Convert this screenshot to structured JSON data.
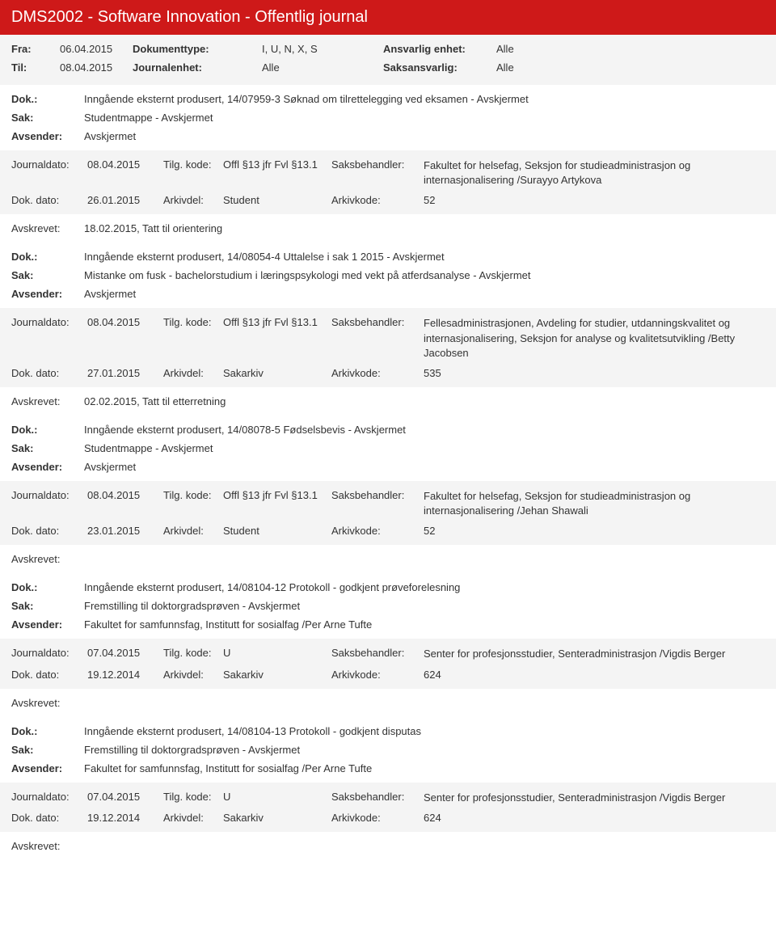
{
  "header": {
    "title": "DMS2002 - Software Innovation - Offentlig journal",
    "fra_label": "Fra:",
    "fra_value": "06.04.2015",
    "til_label": "Til:",
    "til_value": "08.04.2015",
    "doktype_label": "Dokumenttype:",
    "doktype_value": "I, U, N, X, S",
    "journalenhet_label": "Journalenhet:",
    "journalenhet_value": "Alle",
    "ansvarlig_label": "Ansvarlig enhet:",
    "ansvarlig_value": "Alle",
    "saksansvarlig_label": "Saksansvarlig:",
    "saksansvarlig_value": "Alle"
  },
  "labels": {
    "dok": "Dok.:",
    "sak": "Sak:",
    "avsender": "Avsender:",
    "journaldato": "Journaldato:",
    "tilg_kode": "Tilg. kode:",
    "saksbehandler": "Saksbehandler:",
    "dok_dato": "Dok. dato:",
    "arkivdel": "Arkivdel:",
    "arkivkode": "Arkivkode:",
    "avskrevet": "Avskrevet:"
  },
  "entries": [
    {
      "dok": "Inngående eksternt produsert, 14/07959-3 Søknad om tilrettelegging ved eksamen - Avskjermet",
      "sak": "Studentmappe - Avskjermet",
      "avsender": "Avskjermet",
      "journaldato": "08.04.2015",
      "tilg_kode": "Offl §13 jfr Fvl §13.1",
      "saksbehandler": "Fakultet for helsefag, Seksjon for studieadministrasjon og internasjonalisering /Surayyo Artykova",
      "dok_dato": "26.01.2015",
      "arkivdel": "Student",
      "arkivkode": "52",
      "avskrevet": "18.02.2015, Tatt til orientering"
    },
    {
      "dok": "Inngående eksternt produsert, 14/08054-4 Uttalelse i sak 1 2015 - Avskjermet",
      "sak": "Mistanke om fusk - bachelorstudium i læringspsykologi med vekt på atferdsanalyse - Avskjermet",
      "avsender": "Avskjermet",
      "journaldato": "08.04.2015",
      "tilg_kode": "Offl §13 jfr Fvl §13.1",
      "saksbehandler": "Fellesadministrasjonen, Avdeling for studier, utdanningskvalitet og internasjonalisering, Seksjon for analyse og kvalitetsutvikling /Betty Jacobsen",
      "dok_dato": "27.01.2015",
      "arkivdel": "Sakarkiv",
      "arkivkode": "535",
      "avskrevet": "02.02.2015, Tatt til etterretning"
    },
    {
      "dok": "Inngående eksternt produsert, 14/08078-5 Fødselsbevis - Avskjermet",
      "sak": "Studentmappe - Avskjermet",
      "avsender": "Avskjermet",
      "journaldato": "08.04.2015",
      "tilg_kode": "Offl §13 jfr Fvl §13.1",
      "saksbehandler": "Fakultet for helsefag, Seksjon for studieadministrasjon og internasjonalisering /Jehan Shawali",
      "dok_dato": "23.01.2015",
      "arkivdel": "Student",
      "arkivkode": "52",
      "avskrevet": ""
    },
    {
      "dok": "Inngående eksternt produsert, 14/08104-12 Protokoll - godkjent prøveforelesning",
      "sak": "Fremstilling til doktorgradsprøven - Avskjermet",
      "avsender": "Fakultet for samfunnsfag, Institutt for sosialfag /Per Arne Tufte",
      "journaldato": "07.04.2015",
      "tilg_kode": "U",
      "saksbehandler": "Senter for profesjonsstudier, Senteradministrasjon /Vigdis Berger",
      "dok_dato": "19.12.2014",
      "arkivdel": "Sakarkiv",
      "arkivkode": "624",
      "avskrevet": ""
    },
    {
      "dok": "Inngående eksternt produsert, 14/08104-13 Protokoll - godkjent disputas",
      "sak": "Fremstilling til doktorgradsprøven - Avskjermet",
      "avsender": "Fakultet for samfunnsfag, Institutt for sosialfag /Per Arne Tufte",
      "journaldato": "07.04.2015",
      "tilg_kode": "U",
      "saksbehandler": "Senter for profesjonsstudier, Senteradministrasjon /Vigdis Berger",
      "dok_dato": "19.12.2014",
      "arkivdel": "Sakarkiv",
      "arkivkode": "624",
      "avskrevet": ""
    }
  ]
}
